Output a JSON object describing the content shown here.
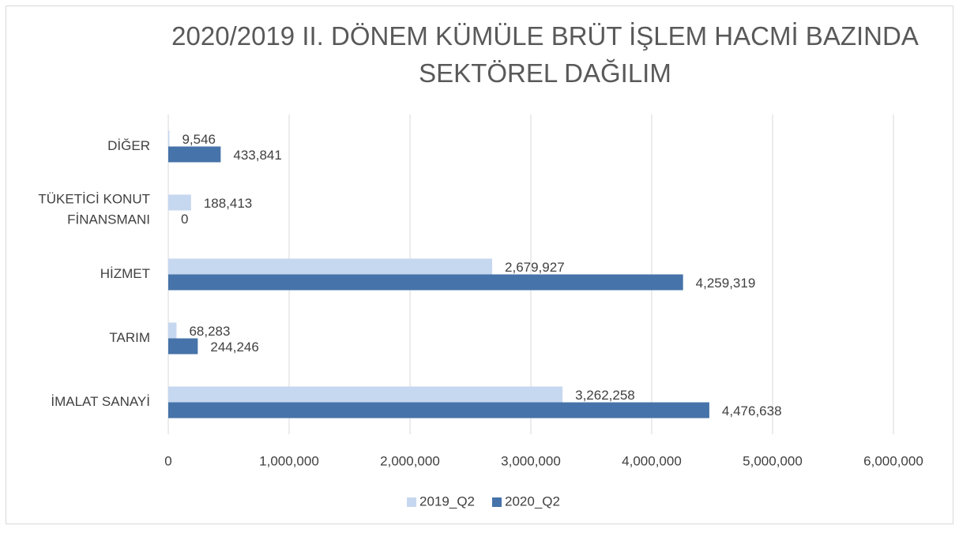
{
  "chart_data": {
    "type": "hbar",
    "title": "2020/2019 II. DÖNEM KÜMÜLE BRÜT İŞLEM HACMİ BAZINDA SEKTÖREL DAĞILIM",
    "categories": [
      "DİĞER",
      "TÜKETİCİ KONUT FİNANSMANI",
      "HİZMET",
      "TARIM",
      "İMALAT SANAYİ"
    ],
    "series": [
      {
        "name": "2019_Q2",
        "color": "#c6d7f0",
        "values": [
          9546,
          188413,
          2679927,
          68283,
          3262258
        ],
        "value_labels": [
          "9,546",
          "188,413",
          "2,679,927",
          "68,283",
          "3,262,258"
        ]
      },
      {
        "name": "2020_Q2",
        "color": "#4673a9",
        "values": [
          433841,
          0,
          4259319,
          244246,
          4476638
        ],
        "value_labels": [
          "433,841",
          "0",
          "4,259,319",
          "244,246",
          "4,476,638"
        ]
      }
    ],
    "xlim": [
      0,
      6000000
    ],
    "xticks": [
      0,
      {
        "value": 1000000,
        "label": "1,000,000"
      },
      {
        "value": 2000000,
        "label": "2,000,000"
      },
      {
        "value": 3000000,
        "label": "3,000,000"
      },
      {
        "value": 4000000,
        "label": "4,000,000"
      },
      {
        "value": 5000000,
        "label": "5,000,000"
      },
      {
        "value": 6000000,
        "label": "6,000,000"
      }
    ],
    "grid": true,
    "legend": "bottom"
  }
}
